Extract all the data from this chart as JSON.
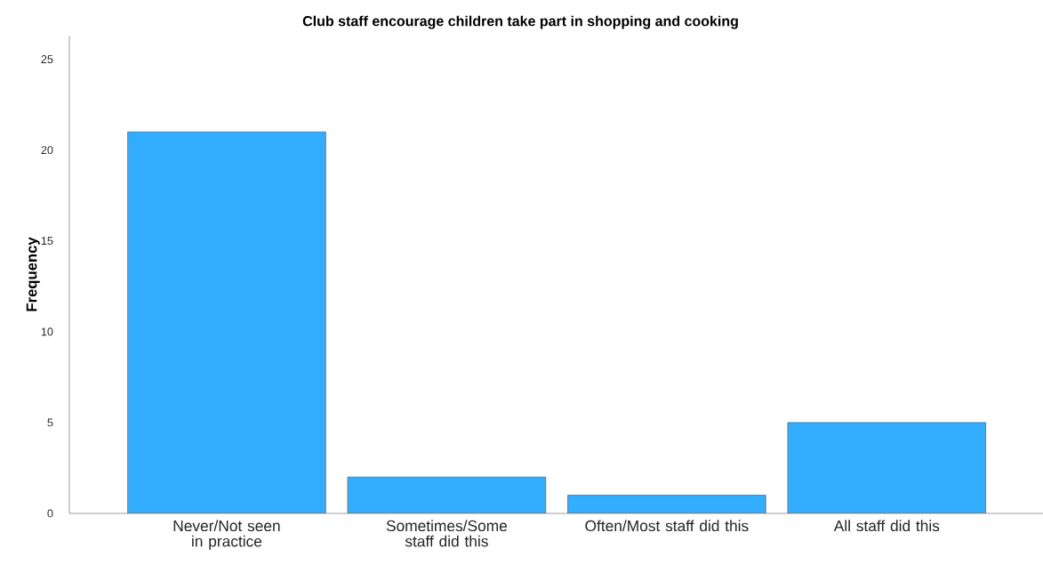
{
  "chart_data": {
    "type": "bar",
    "title": "Club staff  encourage children take part in shopping and cooking",
    "ylabel": "Frequency",
    "categories": [
      "Never/Not seen in practice",
      "Sometimes/Some staff did this",
      "Often/Most staff did this",
      "All staff did this"
    ],
    "values": [
      21,
      2,
      1,
      5
    ],
    "color": "#33adff",
    "ylim": [
      0,
      26.3
    ],
    "yticks": [
      0,
      5,
      10,
      15,
      20,
      25
    ],
    "grid": false
  }
}
